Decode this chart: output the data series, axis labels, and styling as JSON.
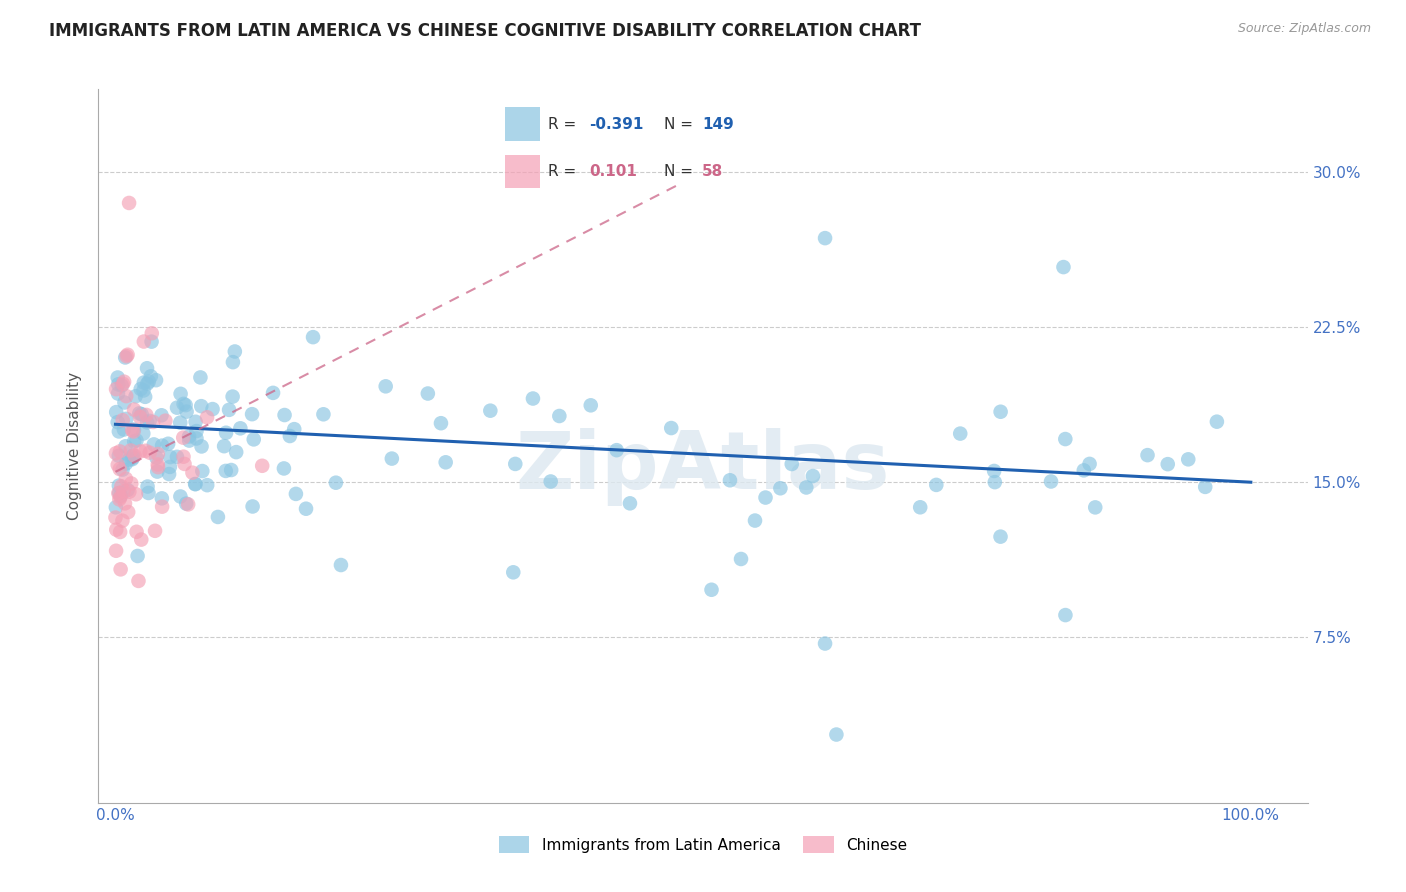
{
  "title": "IMMIGRANTS FROM LATIN AMERICA VS CHINESE COGNITIVE DISABILITY CORRELATION CHART",
  "source": "Source: ZipAtlas.com",
  "ylabel": "Cognitive Disability",
  "xlim": [
    -0.015,
    1.05
  ],
  "ylim": [
    -0.005,
    0.34
  ],
  "blue_color": "#89c4e1",
  "pink_color": "#f4a0b5",
  "blue_line_color": "#2060b0",
  "pink_line_color": "#cc6688",
  "grid_color": "#cccccc",
  "watermark": "ZipAtlas",
  "legend_blue_r": "-0.391",
  "legend_blue_n": "149",
  "legend_pink_r": "0.101",
  "legend_pink_n": "58",
  "legend_label_blue": "Immigrants from Latin America",
  "legend_label_pink": "Chinese",
  "title_fontsize": 12,
  "tick_label_fontsize": 11,
  "axis_label_fontsize": 11,
  "title_color": "#222222",
  "axis_tick_color": "#4472C4",
  "background_color": "#ffffff",
  "ytick_positions": [
    0.0,
    0.075,
    0.15,
    0.225,
    0.3
  ],
  "ytick_labels_right": [
    "",
    "7.5%",
    "15.0%",
    "22.5%",
    "30.0%"
  ],
  "xtick_positions": [
    0.0,
    0.25,
    0.5,
    0.75,
    1.0
  ],
  "xtick_labels": [
    "0.0%",
    "",
    "",
    "",
    "100.0%"
  ]
}
